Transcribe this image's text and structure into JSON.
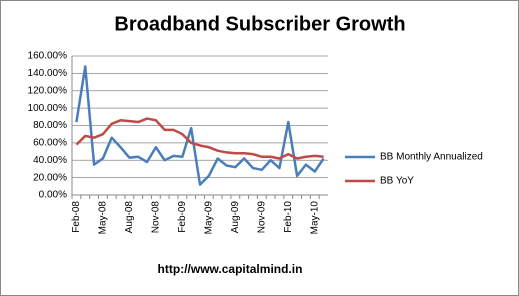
{
  "chart_data": {
    "type": "line",
    "title": "Broadband Subscriber Growth",
    "categories": [
      "Feb-08",
      null,
      null,
      "May-08",
      null,
      null,
      "Aug-08",
      null,
      null,
      "Nov-08",
      null,
      null,
      "Feb-09",
      null,
      null,
      "May-09",
      null,
      null,
      "Aug-09",
      null,
      null,
      "Nov-09",
      null,
      null,
      "Feb-10",
      null,
      null,
      "May-10",
      null
    ],
    "series": [
      {
        "name": "BB Monthly Annualized",
        "color": "#4a7ebb",
        "values": [
          84,
          148,
          35,
          42,
          66,
          55,
          43,
          44,
          38,
          55,
          40,
          45,
          44,
          77,
          12,
          22,
          42,
          34,
          32,
          42,
          31,
          29,
          40,
          31,
          84,
          22,
          35,
          27,
          42
        ]
      },
      {
        "name": "BB YoY",
        "color": "#be4b48",
        "values": [
          58,
          68,
          66,
          70,
          82,
          86,
          85,
          84,
          88,
          86,
          75,
          75,
          70,
          60,
          57,
          55,
          51,
          49,
          48,
          48,
          47,
          44,
          44,
          42,
          47,
          42,
          44,
          45,
          44
        ]
      }
    ],
    "ylim": [
      0,
      160
    ],
    "yticks": [
      {
        "value": 0,
        "label": "0.00%"
      },
      {
        "value": 20,
        "label": "20.00%"
      },
      {
        "value": 40,
        "label": "40.00%"
      },
      {
        "value": 60,
        "label": "60.00%"
      },
      {
        "value": 80,
        "label": "80.00%"
      },
      {
        "value": 100,
        "label": "100.00%"
      },
      {
        "value": 120,
        "label": "120.00%"
      },
      {
        "value": 140,
        "label": "140.00%"
      },
      {
        "value": 160,
        "label": "160.00%"
      }
    ],
    "grid": true,
    "legend": "right",
    "footer": "http://www.capitalmind.in"
  }
}
